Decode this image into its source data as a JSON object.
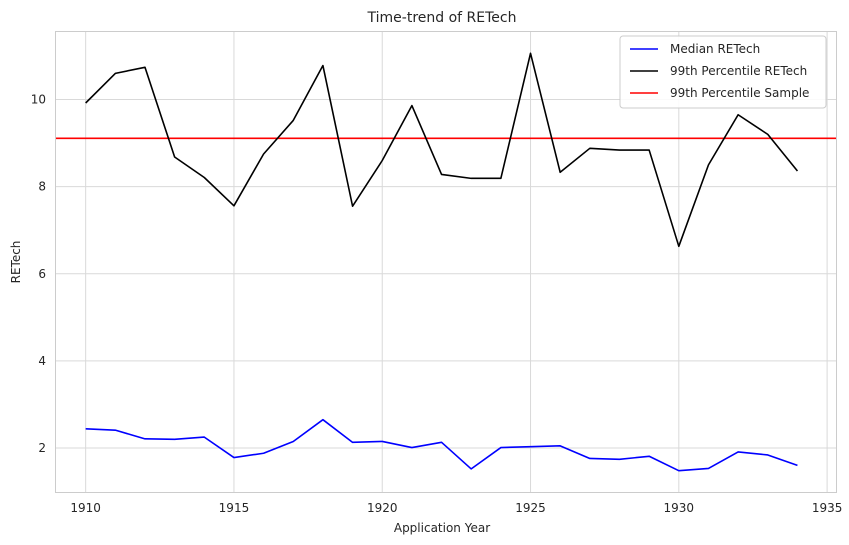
{
  "chart_data": {
    "type": "line",
    "title": "Time-trend of RETech",
    "xlabel": "Application Year",
    "ylabel": "RETech",
    "xlim": [
      1909,
      1935.3
    ],
    "ylim": [
      0.99,
      11.55
    ],
    "xticks": [
      1910,
      1915,
      1920,
      1925,
      1930,
      1935
    ],
    "yticks": [
      2,
      4,
      6,
      8,
      10
    ],
    "grid": true,
    "legend_position": "top-right",
    "x": [
      1910,
      1911,
      1912,
      1913,
      1914,
      1915,
      1916,
      1917,
      1918,
      1919,
      1920,
      1921,
      1922,
      1923,
      1924,
      1925,
      1926,
      1927,
      1928,
      1929,
      1930,
      1931,
      1932,
      1933,
      1934
    ],
    "series": [
      {
        "name": "Median RETech",
        "color": "#0000ff",
        "values": [
          2.44,
          2.41,
          2.21,
          2.2,
          2.25,
          1.78,
          1.88,
          2.15,
          2.65,
          2.13,
          2.15,
          2.01,
          2.13,
          1.52,
          2.01,
          2.03,
          2.05,
          1.76,
          1.74,
          1.81,
          1.48,
          1.53,
          1.91,
          1.84,
          1.6
        ]
      },
      {
        "name": "99th Percentile RETech",
        "color": "#000000",
        "values": [
          9.92,
          10.6,
          10.74,
          8.68,
          8.21,
          7.56,
          8.75,
          9.52,
          10.78,
          7.55,
          8.6,
          9.86,
          8.28,
          8.19,
          8.19,
          11.06,
          8.33,
          8.88,
          8.84,
          8.84,
          6.63,
          8.5,
          9.65,
          9.2,
          8.36
        ]
      }
    ],
    "hlines": [
      {
        "name": "99th Percentile Sample",
        "color": "#ff0000",
        "y": 9.11
      }
    ]
  }
}
